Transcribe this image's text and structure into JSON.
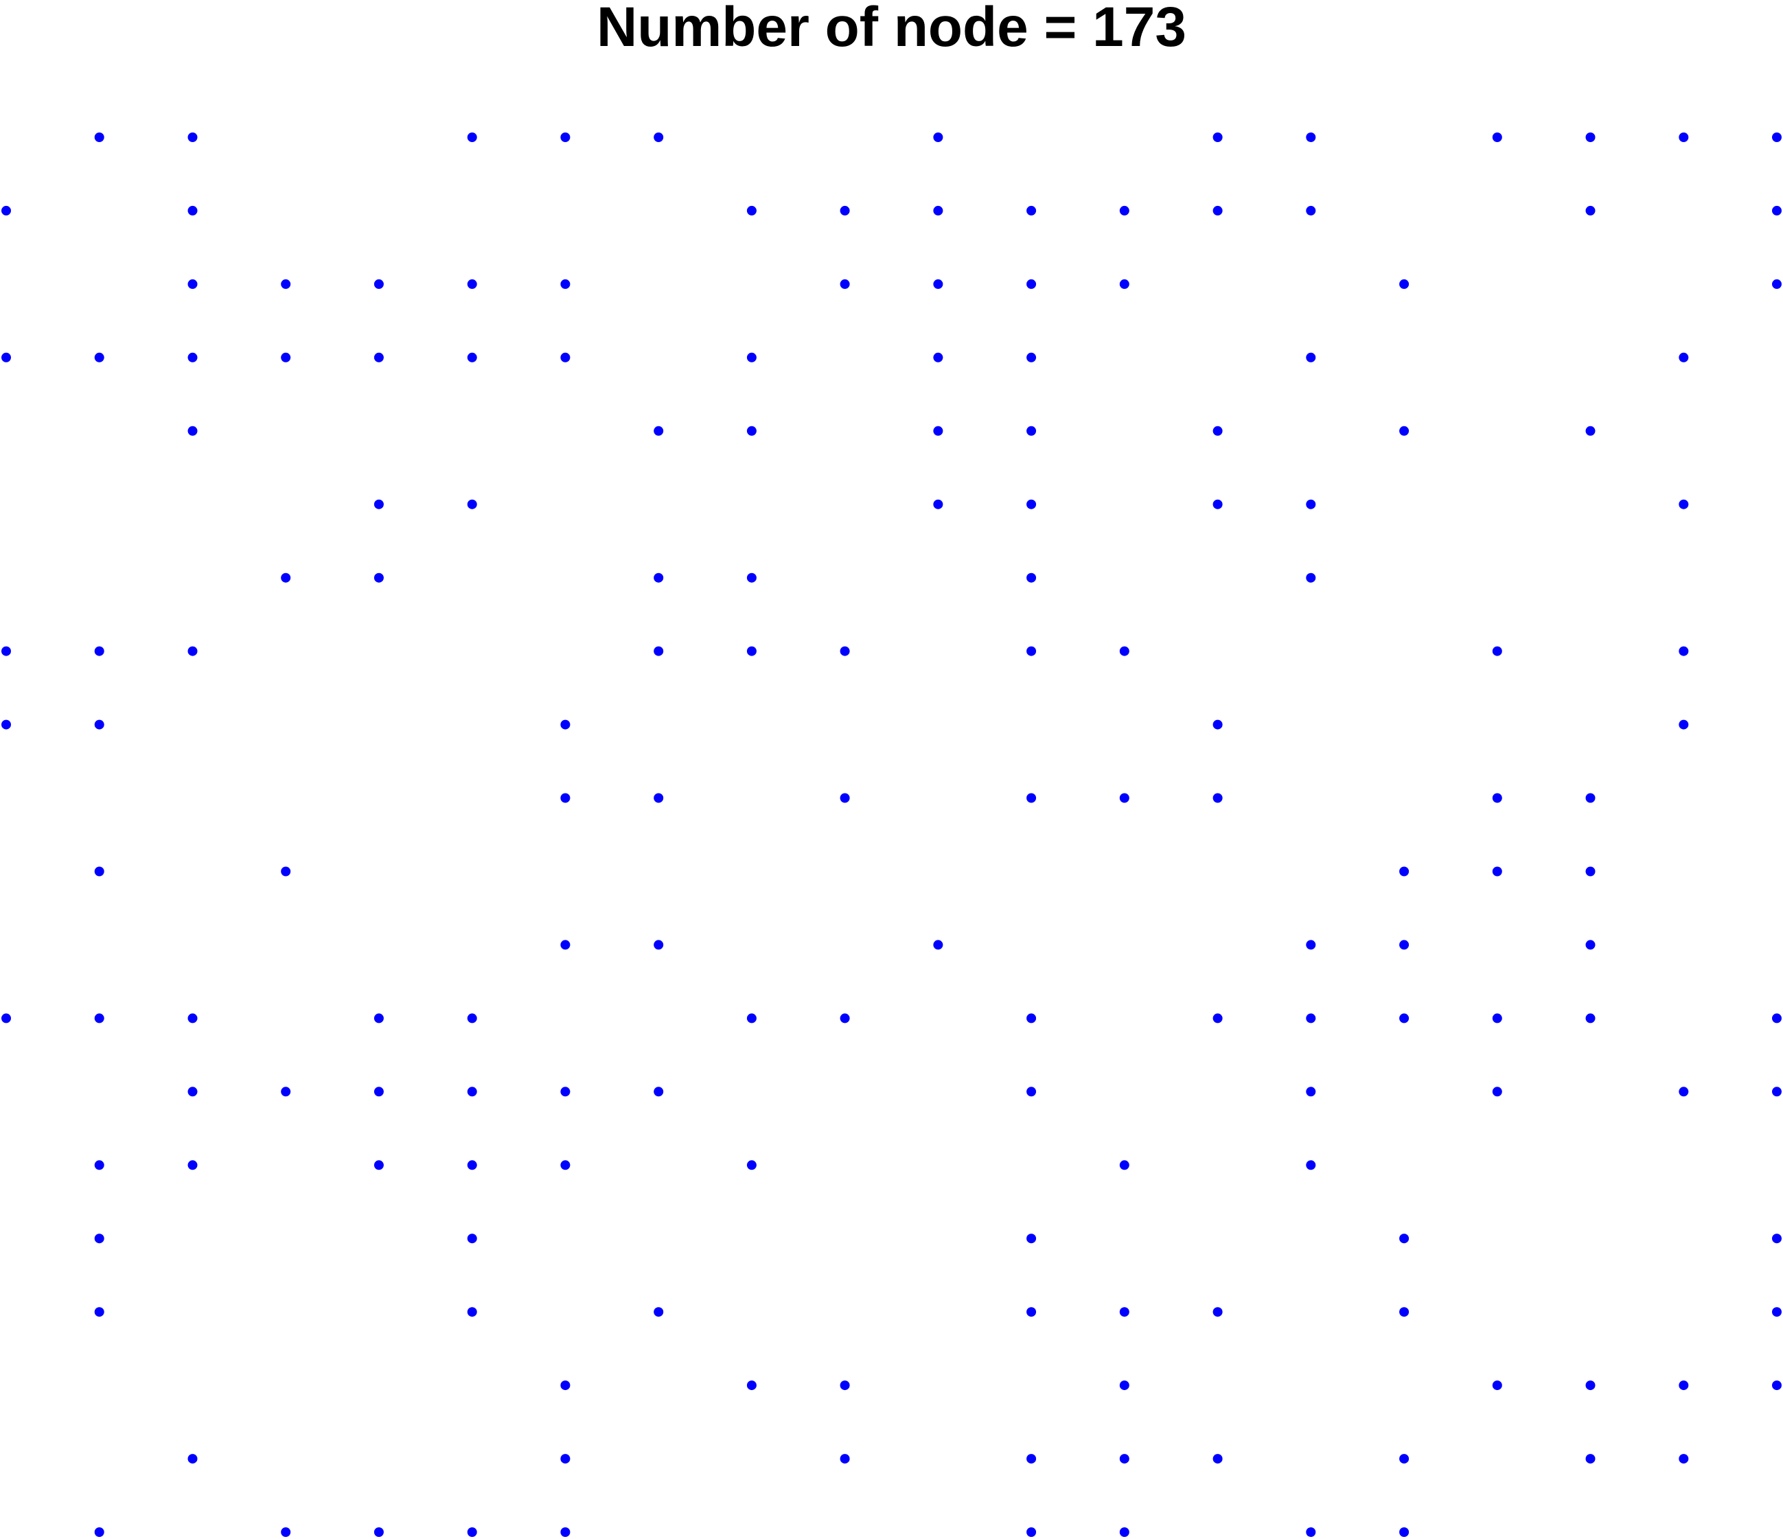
{
  "chart_data": {
    "type": "scatter",
    "title": "Number of node = 173",
    "xlabel": "",
    "ylabel": "",
    "xlim": [
      0,
      19
    ],
    "ylim": [
      0,
      19
    ],
    "grid": false,
    "axes_visible": false,
    "point_color": "#0000ff",
    "point_shape": "filled-circle",
    "rows": [
      {
        "y": 19,
        "x": [
          1,
          2,
          5,
          6,
          7,
          10,
          13,
          14,
          16,
          17,
          18,
          19
        ]
      },
      {
        "y": 18,
        "x": [
          0,
          2,
          8,
          9,
          10,
          11,
          12,
          13,
          14,
          17,
          19
        ]
      },
      {
        "y": 17,
        "x": [
          2,
          3,
          4,
          5,
          6,
          9,
          10,
          11,
          12,
          15,
          19
        ]
      },
      {
        "y": 16,
        "x": [
          0,
          1,
          2,
          3,
          4,
          5,
          6,
          8,
          10,
          11,
          14,
          18
        ]
      },
      {
        "y": 15,
        "x": [
          2,
          7,
          8,
          10,
          11,
          13,
          15,
          17
        ]
      },
      {
        "y": 14,
        "x": [
          4,
          5,
          10,
          11,
          13,
          14,
          18
        ]
      },
      {
        "y": 13,
        "x": [
          3,
          4,
          7,
          8,
          11,
          14
        ]
      },
      {
        "y": 12,
        "x": [
          0,
          1,
          2,
          7,
          8,
          9,
          11,
          12,
          16,
          18
        ]
      },
      {
        "y": 11,
        "x": [
          0,
          1,
          6,
          13,
          18
        ]
      },
      {
        "y": 10,
        "x": [
          6,
          7,
          9,
          11,
          12,
          13,
          16,
          17
        ]
      },
      {
        "y": 9,
        "x": [
          1,
          3,
          15,
          16,
          17
        ]
      },
      {
        "y": 8,
        "x": [
          6,
          7,
          10,
          14,
          15,
          17
        ]
      },
      {
        "y": 7,
        "x": [
          0,
          1,
          2,
          4,
          5,
          8,
          9,
          11,
          13,
          14,
          15,
          16,
          17,
          19
        ]
      },
      {
        "y": 6,
        "x": [
          2,
          3,
          4,
          5,
          6,
          7,
          11,
          14,
          16,
          18,
          19
        ]
      },
      {
        "y": 5,
        "x": [
          1,
          2,
          4,
          5,
          6,
          8,
          12,
          14
        ]
      },
      {
        "y": 4,
        "x": [
          1,
          5,
          11,
          15,
          19
        ]
      },
      {
        "y": 3,
        "x": [
          1,
          5,
          7,
          11,
          12,
          13,
          15,
          19
        ]
      },
      {
        "y": 2,
        "x": [
          6,
          8,
          9,
          12,
          16,
          17,
          18,
          19
        ]
      },
      {
        "y": 1,
        "x": [
          2,
          6,
          9,
          11,
          12,
          13,
          15,
          17,
          18
        ]
      },
      {
        "y": 0,
        "x": [
          1,
          3,
          4,
          5,
          6,
          11,
          12,
          14,
          15
        ]
      }
    ]
  }
}
